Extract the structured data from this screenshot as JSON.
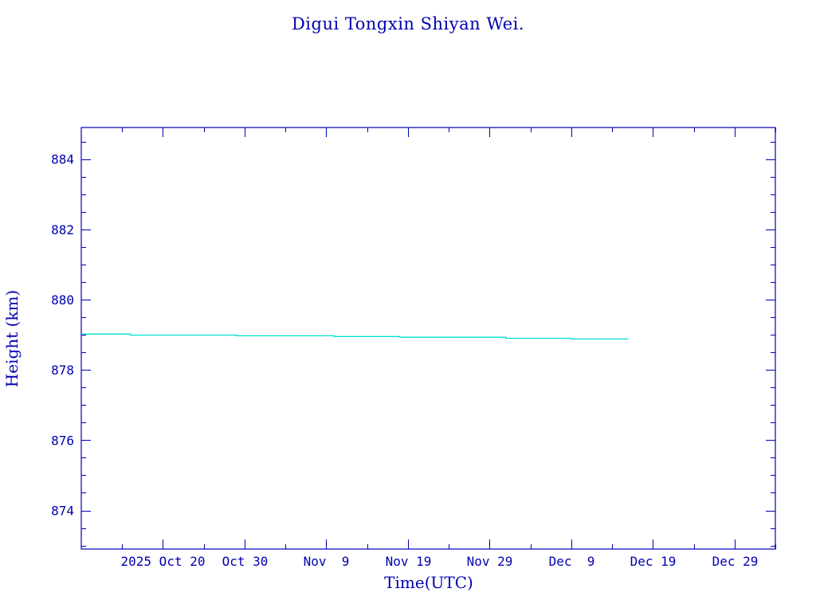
{
  "chart_data": {
    "type": "line",
    "title": "Digui Tongxin Shiyan Wei.",
    "xlabel": "Time(UTC)",
    "ylabel": "Height (km)",
    "xlim": [
      "2025-10-10",
      "2026-01-03"
    ],
    "ylim": [
      872.9,
      884.9
    ],
    "x_ticks": [
      "2025-10-20",
      "2025-10-30",
      "2025-11-09",
      "2025-11-19",
      "2025-11-29",
      "2025-12-09",
      "2025-12-19",
      "2025-12-29"
    ],
    "x_tick_labels": [
      "2025 Oct 20",
      "Oct 30",
      "Nov  9",
      "Nov 19",
      "Nov 29",
      "Dec  9",
      "Dec 19",
      "Dec 29"
    ],
    "y_ticks": [
      874,
      876,
      878,
      880,
      882,
      884
    ],
    "y_tick_labels": [
      "874",
      "876",
      "878",
      "880",
      "882",
      "884"
    ],
    "grid": false,
    "colors": {
      "line": "#00e0d0",
      "axes": "#0000b0",
      "text": "#0000b0"
    },
    "series": [
      {
        "x": [
          "2025-10-10",
          "2025-10-16",
          "2025-10-16",
          "2025-10-29",
          "2025-10-29",
          "2025-11-10",
          "2025-11-10",
          "2025-11-18",
          "2025-11-18",
          "2025-12-01",
          "2025-12-01",
          "2025-12-09",
          "2025-12-09",
          "2025-12-16"
        ],
        "y": [
          879.02,
          879.02,
          878.99,
          878.99,
          878.97,
          878.97,
          878.95,
          878.95,
          878.93,
          878.93,
          878.9,
          878.9,
          878.88,
          878.88
        ]
      }
    ]
  }
}
